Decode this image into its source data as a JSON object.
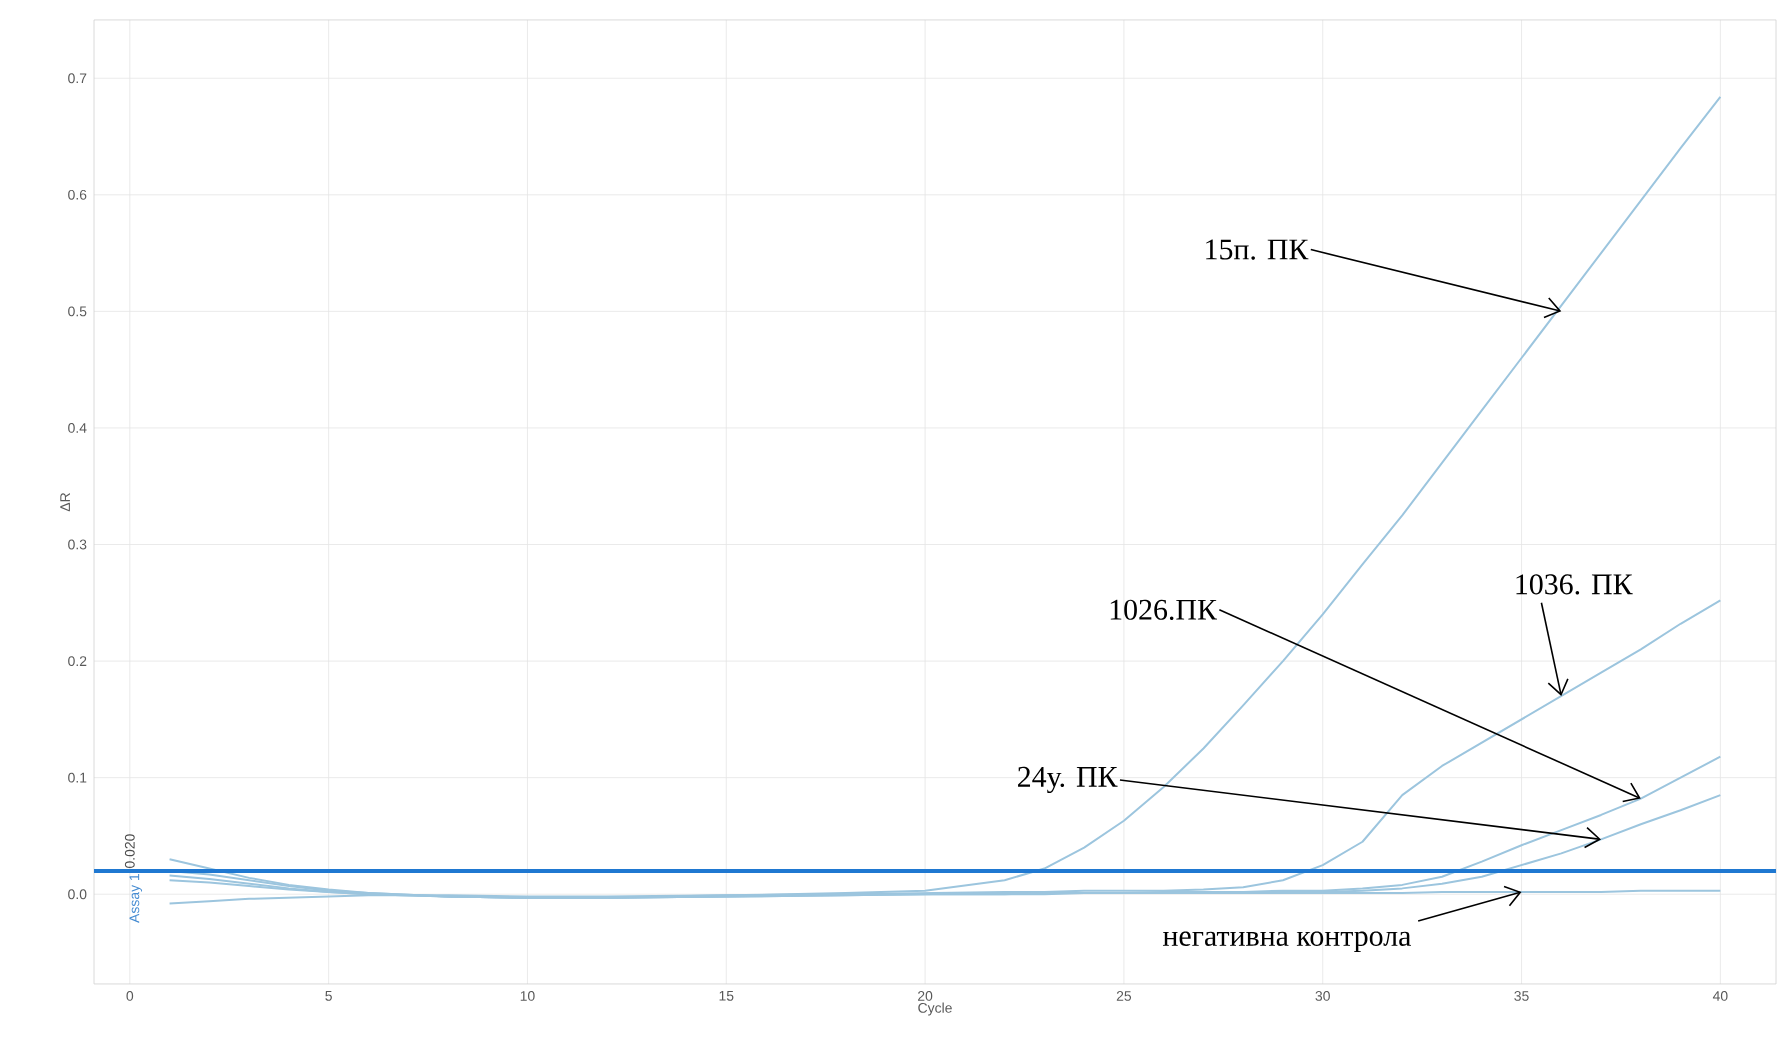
{
  "chart_data": {
    "type": "line",
    "xlabel": "Cycle",
    "ylabel": "ΔR",
    "x": [
      1,
      2,
      3,
      4,
      5,
      6,
      8,
      10,
      12,
      15,
      18,
      20,
      22,
      23,
      24,
      25,
      26,
      27,
      28,
      29,
      30,
      31,
      32,
      33,
      34,
      35,
      36,
      37,
      38,
      39,
      40
    ],
    "series": [
      {
        "color": "#9cc5de",
        "values": [
          0.03,
          0.022,
          0.014,
          0.008,
          0.004,
          0.001,
          -0.002,
          -0.003,
          -0.003,
          -0.001,
          0.001,
          0.003,
          0.012,
          0.022,
          0.04,
          0.063,
          0.092,
          0.125,
          0.162,
          0.2,
          0.24,
          0.283,
          0.325,
          0.37,
          0.415,
          0.46,
          0.505,
          0.55,
          0.595,
          0.64,
          0.684
        ]
      },
      {
        "color": "#9cc5de",
        "values": [
          0.02,
          0.017,
          0.012,
          0.007,
          0.003,
          0.001,
          -0.002,
          -0.003,
          -0.003,
          -0.002,
          0,
          0.001,
          0.002,
          0.002,
          0.003,
          0.003,
          0.003,
          0.004,
          0.006,
          0.012,
          0.025,
          0.045,
          0.085,
          0.11,
          0.13,
          0.15,
          0.17,
          0.19,
          0.21,
          0.232,
          0.252
        ]
      },
      {
        "color": "#9cc5de",
        "values": [
          0.012,
          0.01,
          0.007,
          0.004,
          0.002,
          0,
          -0.002,
          -0.003,
          -0.003,
          -0.002,
          -0.001,
          0,
          0.001,
          0.001,
          0.001,
          0.001,
          0.002,
          0.002,
          0.002,
          0.003,
          0.003,
          0.005,
          0.008,
          0.015,
          0.028,
          0.042,
          0.055,
          0.068,
          0.082,
          0.1,
          0.118
        ]
      },
      {
        "color": "#9cc5de",
        "values": [
          0.016,
          0.013,
          0.009,
          0.005,
          0.002,
          0,
          -0.002,
          -0.003,
          -0.003,
          -0.002,
          -0.001,
          0,
          0,
          0.001,
          0.001,
          0.001,
          0.001,
          0.001,
          0.002,
          0.002,
          0.002,
          0.003,
          0.005,
          0.009,
          0.015,
          0.025,
          0.035,
          0.047,
          0.06,
          0.072,
          0.085
        ]
      },
      {
        "color": "#9cc5de",
        "values": [
          -0.008,
          -0.006,
          -0.004,
          -0.003,
          -0.002,
          -0.001,
          -0.001,
          -0.002,
          -0.002,
          -0.001,
          0,
          0,
          0,
          0,
          0.001,
          0.001,
          0.001,
          0.001,
          0.001,
          0.001,
          0.001,
          0.001,
          0.001,
          0.002,
          0.002,
          0.002,
          0.002,
          0.002,
          0.003,
          0.003,
          0.003
        ]
      }
    ],
    "xlim": [
      -0.9,
      41.4
    ],
    "ylim": [
      -0.077,
      0.75
    ],
    "xticks": [
      0,
      5,
      10,
      15,
      20,
      25,
      30,
      35,
      40
    ],
    "yticks": [
      {
        "value": 0,
        "label": "0.0"
      },
      0.1,
      0.2,
      0.3,
      0.4,
      0.5,
      0.6,
      0.7
    ],
    "grid": true,
    "marker": "none",
    "line_style": "solid",
    "ref_lines": [
      {
        "axis": "y",
        "value": 0.02,
        "label": "0.020",
        "color": "#1f78d1"
      }
    ],
    "annotations": [
      {
        "text": "15п. ПК",
        "x": 36,
        "y": 0.5
      },
      {
        "text": "1036. ПК",
        "x": 36,
        "y": 0.17
      },
      {
        "text": "1026.ПК",
        "x": 38,
        "y": 0.082
      },
      {
        "text": "24у. ПК",
        "x": 37,
        "y": 0.047
      },
      {
        "text": "негативна контрола",
        "x": 35,
        "y": 0.002
      },
      "Assay 1"
    ]
  }
}
